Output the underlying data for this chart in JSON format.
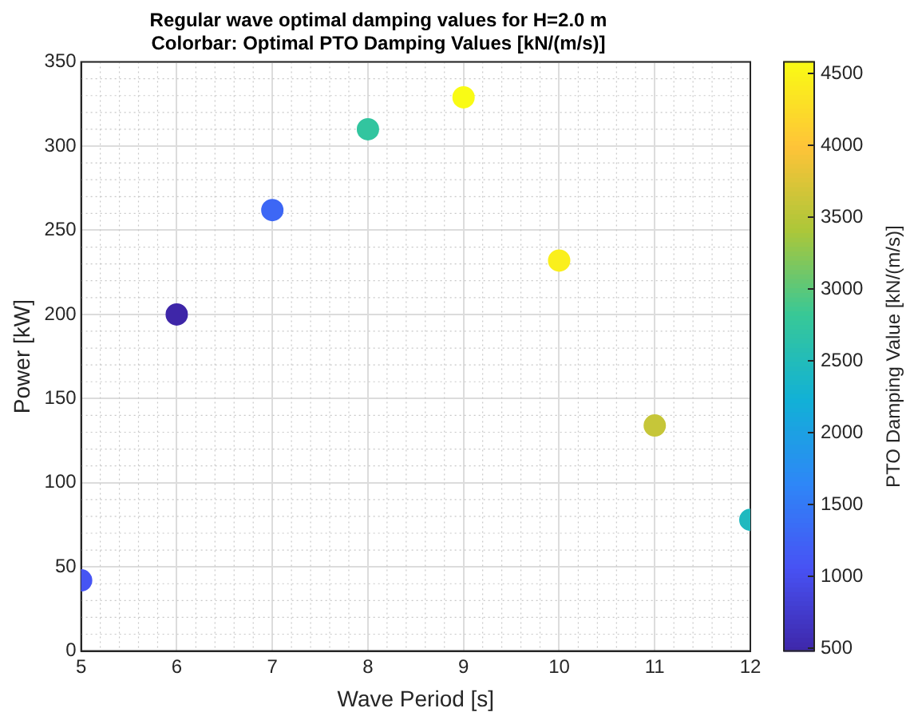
{
  "chart_data": {
    "type": "scatter",
    "title": "Regular wave optimal damping values for H=2.0 m",
    "subtitle": "Colorbar: Optimal PTO Damping Values [kN/(m/s)]",
    "xlabel": "Wave Period [s]",
    "ylabel": "Power [kW]",
    "clabel": "PTO Damping Value [kN/(m/s)]",
    "x": [
      5,
      6,
      7,
      8,
      9,
      10,
      11,
      12
    ],
    "values": [
      42,
      200,
      262,
      310,
      329,
      232,
      134,
      78
    ],
    "cvalues": [
      1100,
      480,
      1300,
      2750,
      4580,
      4450,
      3600,
      2450
    ],
    "xlim": [
      5,
      12
    ],
    "xticks": [
      5,
      6,
      7,
      8,
      9,
      10,
      11,
      12
    ],
    "ylim": [
      0,
      350
    ],
    "yticks": [
      0,
      50,
      100,
      150,
      200,
      250,
      300,
      350
    ],
    "clim": [
      480,
      4580
    ],
    "cticks": [
      500,
      1000,
      1500,
      2000,
      2500,
      3000,
      3500,
      4000,
      4500
    ],
    "grid": true,
    "marker": "circle",
    "legend": false
  }
}
